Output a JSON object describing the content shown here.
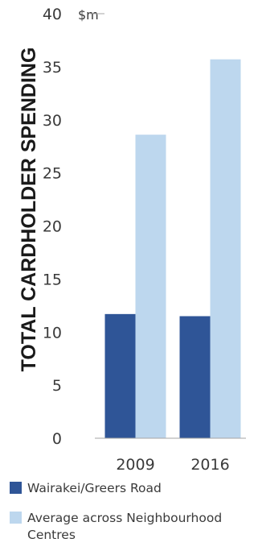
{
  "chart_data": {
    "type": "bar",
    "categories": [
      "2009",
      "2016"
    ],
    "series": [
      {
        "name": "Wairakei/Greers Road",
        "values": [
          11.7,
          11.5
        ],
        "color": "#2f5597"
      },
      {
        "name": "Average across Neighbourhood Centres",
        "values": [
          28.6,
          35.7
        ],
        "color": "#bdd7ee"
      }
    ],
    "ylabel": "TOTAL CARDHOLDER SPENDING",
    "y_unit": "$m",
    "ylim": [
      0,
      40
    ],
    "yticks": [
      0,
      5,
      10,
      15,
      20,
      25,
      30,
      35,
      40
    ],
    "grid": false,
    "legend_position": "bottom",
    "legend": [
      {
        "lines": [
          "Wairakei/Greers Road"
        ]
      },
      {
        "lines": [
          "Average across Neighbourhood",
          "Centres"
        ]
      }
    ]
  }
}
